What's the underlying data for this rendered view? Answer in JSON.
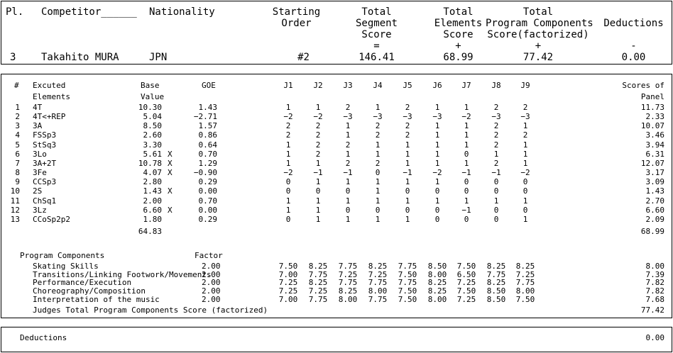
{
  "header": {
    "col_place": "Pl.",
    "col_competitor": "Competitor______",
    "col_nationality": "Nationality",
    "col_starting_order": [
      "Starting",
      "Order"
    ],
    "col_total_segment": [
      "Total",
      "Segment",
      "Score",
      "="
    ],
    "col_total_elements": [
      "Total",
      "Elements",
      "Score",
      "+"
    ],
    "col_total_pcs": [
      "Total",
      "Program Components",
      "Score(factorized)",
      "+"
    ],
    "col_deductions": [
      "Deductions",
      "-"
    ],
    "place": "3",
    "competitor": "Takahito MURA",
    "nationality": "JPN",
    "starting_order": "#2",
    "total_segment_score": "146.41",
    "total_elements_score": "68.99",
    "total_pcs": "77.42",
    "deductions": "0.00"
  },
  "elements": {
    "col_num": "#",
    "col_element": [
      "Excuted",
      "Elements"
    ],
    "col_base": [
      "Base",
      "Value"
    ],
    "col_goe": "GOE",
    "judges": [
      "J1",
      "J2",
      "J3",
      "J4",
      "J5",
      "J6",
      "J7",
      "J8",
      "J9"
    ],
    "col_scores": [
      "Scores of",
      "Panel"
    ],
    "rows": [
      {
        "num": "1",
        "element": "4T",
        "base": "10.30",
        "x": "",
        "goe": "1.43",
        "j": [
          "1",
          "1",
          "2",
          "1",
          "2",
          "1",
          "1",
          "2",
          "2"
        ],
        "score": "11.73"
      },
      {
        "num": "2",
        "element": "4T<+REP",
        "base": "5.04",
        "x": "",
        "goe": "−2.71",
        "j": [
          "−2",
          "−2",
          "−3",
          "−3",
          "−3",
          "−3",
          "−2",
          "−3",
          "−3"
        ],
        "score": "2.33"
      },
      {
        "num": "3",
        "element": "3A",
        "base": "8.50",
        "x": "",
        "goe": "1.57",
        "j": [
          "2",
          "2",
          "1",
          "2",
          "2",
          "1",
          "1",
          "2",
          "1"
        ],
        "score": "10.07"
      },
      {
        "num": "4",
        "element": "FSSp3",
        "base": "2.60",
        "x": "",
        "goe": "0.86",
        "j": [
          "2",
          "2",
          "1",
          "2",
          "2",
          "1",
          "1",
          "2",
          "2"
        ],
        "score": "3.46"
      },
      {
        "num": "5",
        "element": "StSq3",
        "base": "3.30",
        "x": "",
        "goe": "0.64",
        "j": [
          "1",
          "2",
          "2",
          "1",
          "1",
          "1",
          "1",
          "2",
          "1"
        ],
        "score": "3.94"
      },
      {
        "num": "6",
        "element": "3Lo",
        "base": "5.61",
        "x": "X",
        "goe": "0.70",
        "j": [
          "1",
          "2",
          "1",
          "1",
          "1",
          "1",
          "0",
          "1",
          "1"
        ],
        "score": "6.31"
      },
      {
        "num": "7",
        "element": "3A+2T",
        "base": "10.78",
        "x": "X",
        "goe": "1.29",
        "j": [
          "1",
          "1",
          "2",
          "2",
          "1",
          "1",
          "1",
          "2",
          "1"
        ],
        "score": "12.07"
      },
      {
        "num": "8",
        "element": "3Fe",
        "base": "4.07",
        "x": "X",
        "goe": "−0.90",
        "j": [
          "−2",
          "−1",
          "−1",
          "0",
          "−1",
          "−2",
          "−1",
          "−1",
          "−2"
        ],
        "score": "3.17"
      },
      {
        "num": "9",
        "element": "CCSp3",
        "base": "2.80",
        "x": "",
        "goe": "0.29",
        "j": [
          "0",
          "1",
          "1",
          "1",
          "1",
          "1",
          "0",
          "0",
          "0"
        ],
        "score": "3.09"
      },
      {
        "num": "10",
        "element": "2S",
        "base": "1.43",
        "x": "X",
        "goe": "0.00",
        "j": [
          "0",
          "0",
          "0",
          "1",
          "0",
          "0",
          "0",
          "0",
          "0"
        ],
        "score": "1.43"
      },
      {
        "num": "11",
        "element": "ChSq1",
        "base": "2.00",
        "x": "",
        "goe": "0.70",
        "j": [
          "1",
          "1",
          "1",
          "1",
          "1",
          "1",
          "1",
          "1",
          "1"
        ],
        "score": "2.70"
      },
      {
        "num": "12",
        "element": "3Lz",
        "base": "6.60",
        "x": "X",
        "goe": "0.00",
        "j": [
          "1",
          "1",
          "0",
          "0",
          "0",
          "0",
          "−1",
          "0",
          "0"
        ],
        "score": "6.60"
      },
      {
        "num": "13",
        "element": "CCoSp2p2",
        "base": "1.80",
        "x": "",
        "goe": "0.29",
        "j": [
          "0",
          "1",
          "1",
          "1",
          "1",
          "0",
          "0",
          "0",
          "1"
        ],
        "score": "2.09"
      }
    ],
    "base_total": "64.83",
    "score_total": "68.99"
  },
  "components": {
    "title": "Program Components",
    "col_factor": "Factor",
    "rows": [
      {
        "name": "Skating Skills",
        "factor": "2.00",
        "j": [
          "7.50",
          "8.25",
          "7.75",
          "8.25",
          "7.75",
          "8.50",
          "7.50",
          "8.25",
          "8.25"
        ],
        "score": "8.00"
      },
      {
        "name": "Transitions/Linking Footwork/Movements",
        "factor": "2.00",
        "j": [
          "7.00",
          "7.75",
          "7.25",
          "7.25",
          "7.50",
          "8.00",
          "6.50",
          "7.75",
          "7.25"
        ],
        "score": "7.39"
      },
      {
        "name": "Performance/Execution",
        "factor": "2.00",
        "j": [
          "7.25",
          "8.25",
          "7.75",
          "7.75",
          "7.75",
          "8.25",
          "7.25",
          "8.25",
          "7.75"
        ],
        "score": "7.82"
      },
      {
        "name": "Choreography/Composition",
        "factor": "2.00",
        "j": [
          "7.25",
          "7.25",
          "8.25",
          "8.00",
          "7.50",
          "8.25",
          "7.50",
          "8.50",
          "8.00"
        ],
        "score": "7.82"
      },
      {
        "name": "Interpretation of the music",
        "factor": "2.00",
        "j": [
          "7.00",
          "7.75",
          "8.00",
          "7.75",
          "7.50",
          "8.00",
          "7.25",
          "8.50",
          "7.50"
        ],
        "score": "7.68"
      }
    ],
    "total_label": "Judges Total Program Components Score (factorized)",
    "total": "77.42"
  },
  "footer": {
    "label": "Deductions",
    "value": "0.00"
  }
}
